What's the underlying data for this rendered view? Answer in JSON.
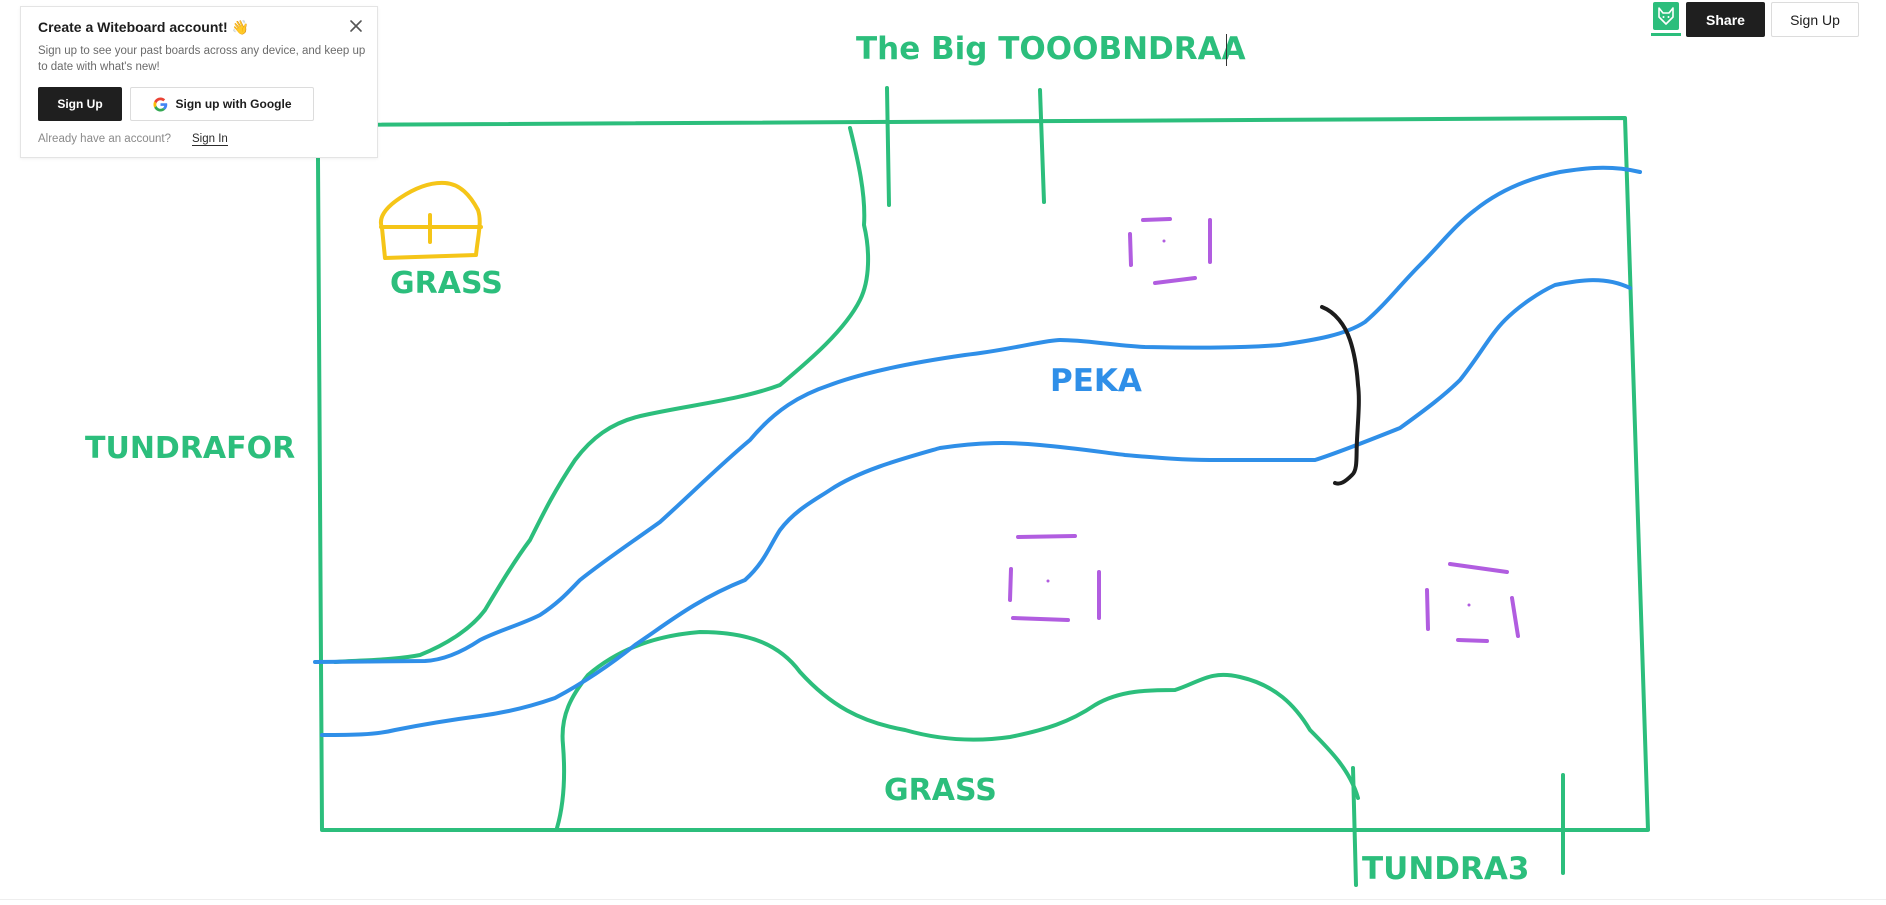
{
  "popup": {
    "title": "Create a Witeboard account! 👋",
    "description": "Sign up to see your past boards across any device, and keep up to date with what's new!",
    "signup_label": "Sign Up",
    "google_label": "Sign up with Google",
    "already_text": "Already have an account?",
    "signin_label": "Sign In",
    "close_icon": "close-icon"
  },
  "toolbar": {
    "logo_icon": "fox-logo-icon",
    "share_label": "Share",
    "signup_label": "Sign Up"
  },
  "canvas": {
    "title": "The Big TOOOBNDRAA",
    "labels": {
      "grass_top": "GRASS",
      "tundrafor": "TUNDRAFOR",
      "peka": "PEKA",
      "grass_bottom": "GRASS",
      "tundra3": "TUNDRA3"
    },
    "colors": {
      "green": "#2cbe7c",
      "blue": "#2f8fe8",
      "yellow": "#f5c518",
      "purple": "#b15de0",
      "black": "#1c1c1c"
    }
  }
}
